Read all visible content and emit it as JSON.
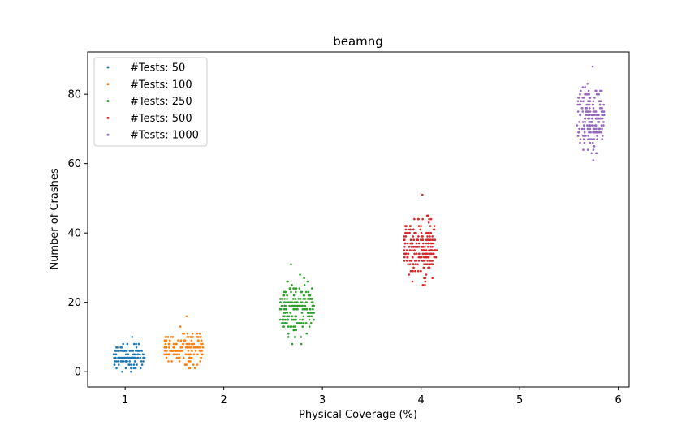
{
  "chart_data": {
    "type": "scatter",
    "title": "beamng",
    "xlabel": "Physical Coverage  (%)",
    "ylabel": "Number of Crashes",
    "xlim": [
      0.62,
      6.11
    ],
    "ylim": [
      -4.4,
      92.2
    ],
    "xticks": [
      "1",
      "2",
      "3",
      "4",
      "5",
      "6"
    ],
    "yticks": [
      "0",
      "20",
      "40",
      "60",
      "80"
    ],
    "grid": false,
    "legend_position": "top-left",
    "series": [
      {
        "name": "#Tests: 50",
        "color": "#1f77b4",
        "x_center": 1.04,
        "x_spread": 0.16,
        "y_min": 0,
        "y_max": 10,
        "y_mean": 4,
        "count": 120,
        "seed": 11
      },
      {
        "name": "#Tests: 100",
        "color": "#ff7f0e",
        "x_center": 1.59,
        "x_spread": 0.2,
        "y_min": 1,
        "y_max": 16,
        "y_mean": 7,
        "count": 160,
        "seed": 23
      },
      {
        "name": "#Tests: 250",
        "color": "#2ca02c",
        "x_center": 2.74,
        "x_spread": 0.18,
        "y_min": 8,
        "y_max": 31,
        "y_mean": 18,
        "count": 200,
        "seed": 37
      },
      {
        "name": "#Tests: 500",
        "color": "#d62728",
        "x_center": 3.99,
        "x_spread": 0.17,
        "y_min": 25,
        "y_max": 51,
        "y_mean": 36,
        "count": 230,
        "seed": 53
      },
      {
        "name": "#Tests: 1000",
        "color": "#9467bd",
        "x_center": 5.72,
        "x_spread": 0.14,
        "y_min": 61,
        "y_max": 88,
        "y_mean": 73,
        "count": 200,
        "seed": 71
      }
    ]
  }
}
